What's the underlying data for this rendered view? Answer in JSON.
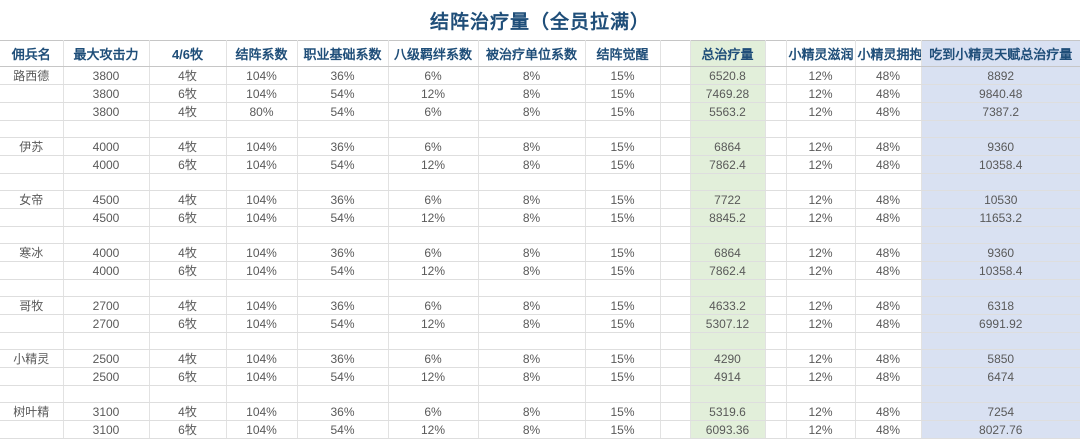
{
  "title": "结阵治疗量（全员拉满）",
  "colors": {
    "title_text": "#1f4e79",
    "header_text": "#1f4e79",
    "data_text": "#595959",
    "total_heal_column_bg": "#e2efda",
    "fairy_total_column_bg": "#d9e1f2",
    "gridline": "#dedede"
  },
  "table": {
    "columns": [
      {
        "key": "name",
        "label": "佣兵名",
        "style": "plain"
      },
      {
        "key": "max_atk",
        "label": "最大攻击力",
        "style": "plain"
      },
      {
        "key": "priests",
        "label": "4/6牧",
        "style": "plain"
      },
      {
        "key": "formation_coef",
        "label": "结阵系数",
        "style": "plain"
      },
      {
        "key": "class_base_coef",
        "label": "职业基础系数",
        "style": "plain"
      },
      {
        "key": "bond8_coef",
        "label": "八级羁绊系数",
        "style": "plain"
      },
      {
        "key": "healed_unit_coef",
        "label": "被治疗单位系数",
        "style": "plain"
      },
      {
        "key": "formation_awaken",
        "label": "结阵觉醒",
        "style": "plain"
      },
      {
        "key": "spacer1",
        "label": "",
        "style": "spacer"
      },
      {
        "key": "total_heal",
        "label": "总治疗量",
        "style": "green"
      },
      {
        "key": "spacer2",
        "label": "",
        "style": "spacer"
      },
      {
        "key": "fairy_nourish",
        "label": "小精灵滋润",
        "style": "plain"
      },
      {
        "key": "fairy_hug",
        "label": "小精灵拥抱",
        "style": "plain"
      },
      {
        "key": "fairy_total_heal",
        "label": "吃到小精灵天赋总治疗量",
        "style": "lavender"
      }
    ],
    "rows": [
      {
        "name": "路西德",
        "max_atk": "3800",
        "priests": "4牧",
        "formation_coef": "104%",
        "class_base_coef": "36%",
        "bond8_coef": "6%",
        "healed_unit_coef": "8%",
        "formation_awaken": "15%",
        "total_heal": "6520.8",
        "fairy_nourish": "12%",
        "fairy_hug": "48%",
        "fairy_total_heal": "8892"
      },
      {
        "name": "",
        "max_atk": "3800",
        "priests": "6牧",
        "formation_coef": "104%",
        "class_base_coef": "54%",
        "bond8_coef": "12%",
        "healed_unit_coef": "8%",
        "formation_awaken": "15%",
        "total_heal": "7469.28",
        "fairy_nourish": "12%",
        "fairy_hug": "48%",
        "fairy_total_heal": "9840.48"
      },
      {
        "name": "",
        "max_atk": "3800",
        "priests": "4牧",
        "formation_coef": "80%",
        "class_base_coef": "54%",
        "bond8_coef": "6%",
        "healed_unit_coef": "8%",
        "formation_awaken": "15%",
        "total_heal": "5563.2",
        "fairy_nourish": "12%",
        "fairy_hug": "48%",
        "fairy_total_heal": "7387.2"
      },
      {
        "gap": true
      },
      {
        "name": "伊苏",
        "max_atk": "4000",
        "priests": "4牧",
        "formation_coef": "104%",
        "class_base_coef": "36%",
        "bond8_coef": "6%",
        "healed_unit_coef": "8%",
        "formation_awaken": "15%",
        "total_heal": "6864",
        "fairy_nourish": "12%",
        "fairy_hug": "48%",
        "fairy_total_heal": "9360"
      },
      {
        "name": "",
        "max_atk": "4000",
        "priests": "6牧",
        "formation_coef": "104%",
        "class_base_coef": "54%",
        "bond8_coef": "12%",
        "healed_unit_coef": "8%",
        "formation_awaken": "15%",
        "total_heal": "7862.4",
        "fairy_nourish": "12%",
        "fairy_hug": "48%",
        "fairy_total_heal": "10358.4"
      },
      {
        "gap": true
      },
      {
        "name": "女帝",
        "max_atk": "4500",
        "priests": "4牧",
        "formation_coef": "104%",
        "class_base_coef": "36%",
        "bond8_coef": "6%",
        "healed_unit_coef": "8%",
        "formation_awaken": "15%",
        "total_heal": "7722",
        "fairy_nourish": "12%",
        "fairy_hug": "48%",
        "fairy_total_heal": "10530"
      },
      {
        "name": "",
        "max_atk": "4500",
        "priests": "6牧",
        "formation_coef": "104%",
        "class_base_coef": "54%",
        "bond8_coef": "12%",
        "healed_unit_coef": "8%",
        "formation_awaken": "15%",
        "total_heal": "8845.2",
        "fairy_nourish": "12%",
        "fairy_hug": "48%",
        "fairy_total_heal": "11653.2"
      },
      {
        "gap": true
      },
      {
        "name": "寒冰",
        "max_atk": "4000",
        "priests": "4牧",
        "formation_coef": "104%",
        "class_base_coef": "36%",
        "bond8_coef": "6%",
        "healed_unit_coef": "8%",
        "formation_awaken": "15%",
        "total_heal": "6864",
        "fairy_nourish": "12%",
        "fairy_hug": "48%",
        "fairy_total_heal": "9360"
      },
      {
        "name": "",
        "max_atk": "4000",
        "priests": "6牧",
        "formation_coef": "104%",
        "class_base_coef": "54%",
        "bond8_coef": "12%",
        "healed_unit_coef": "8%",
        "formation_awaken": "15%",
        "total_heal": "7862.4",
        "fairy_nourish": "12%",
        "fairy_hug": "48%",
        "fairy_total_heal": "10358.4"
      },
      {
        "gap": true
      },
      {
        "name": "哥牧",
        "max_atk": "2700",
        "priests": "4牧",
        "formation_coef": "104%",
        "class_base_coef": "36%",
        "bond8_coef": "6%",
        "healed_unit_coef": "8%",
        "formation_awaken": "15%",
        "total_heal": "4633.2",
        "fairy_nourish": "12%",
        "fairy_hug": "48%",
        "fairy_total_heal": "6318"
      },
      {
        "name": "",
        "max_atk": "2700",
        "priests": "6牧",
        "formation_coef": "104%",
        "class_base_coef": "54%",
        "bond8_coef": "12%",
        "healed_unit_coef": "8%",
        "formation_awaken": "15%",
        "total_heal": "5307.12",
        "fairy_nourish": "12%",
        "fairy_hug": "48%",
        "fairy_total_heal": "6991.92"
      },
      {
        "gap": true
      },
      {
        "name": "小精灵",
        "max_atk": "2500",
        "priests": "4牧",
        "formation_coef": "104%",
        "class_base_coef": "36%",
        "bond8_coef": "6%",
        "healed_unit_coef": "8%",
        "formation_awaken": "15%",
        "total_heal": "4290",
        "fairy_nourish": "12%",
        "fairy_hug": "48%",
        "fairy_total_heal": "5850"
      },
      {
        "name": "",
        "max_atk": "2500",
        "priests": "6牧",
        "formation_coef": "104%",
        "class_base_coef": "54%",
        "bond8_coef": "12%",
        "healed_unit_coef": "8%",
        "formation_awaken": "15%",
        "total_heal": "4914",
        "fairy_nourish": "12%",
        "fairy_hug": "48%",
        "fairy_total_heal": "6474"
      },
      {
        "gap": true
      },
      {
        "name": "树叶精",
        "max_atk": "3100",
        "priests": "4牧",
        "formation_coef": "104%",
        "class_base_coef": "36%",
        "bond8_coef": "6%",
        "healed_unit_coef": "8%",
        "formation_awaken": "15%",
        "total_heal": "5319.6",
        "fairy_nourish": "12%",
        "fairy_hug": "48%",
        "fairy_total_heal": "7254"
      },
      {
        "name": "",
        "max_atk": "3100",
        "priests": "6牧",
        "formation_coef": "104%",
        "class_base_coef": "54%",
        "bond8_coef": "12%",
        "healed_unit_coef": "8%",
        "formation_awaken": "15%",
        "total_heal": "6093.36",
        "fairy_nourish": "12%",
        "fairy_hug": "48%",
        "fairy_total_heal": "8027.76"
      }
    ]
  }
}
